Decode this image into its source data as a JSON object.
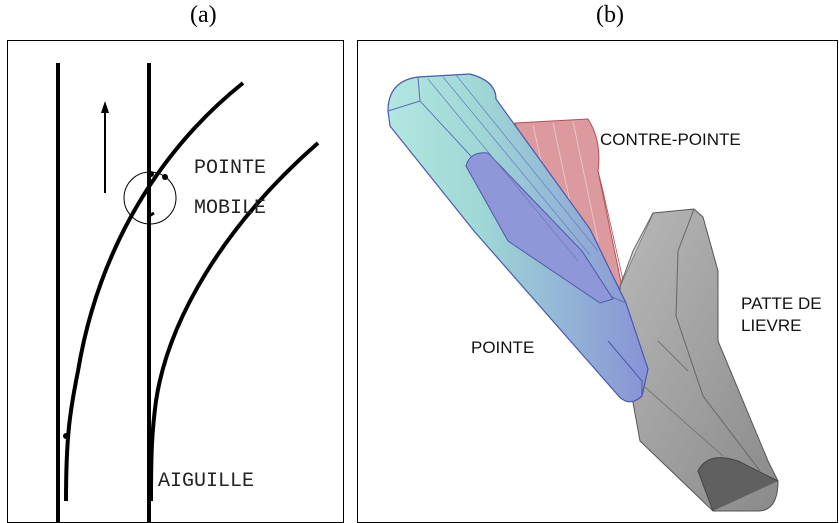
{
  "figure": {
    "panel_a": {
      "caption": "(a)",
      "labels": {
        "pointe": "POINTE",
        "mobile": "MOBILE",
        "aiguille": "AIGUILLE"
      }
    },
    "panel_b": {
      "caption": "(b)",
      "labels": {
        "contre_pointe": "CONTRE-POINTE",
        "patte_line1": "PATTE DE",
        "patte_line2": "LIEVRE",
        "pointe": "POINTE"
      },
      "colors": {
        "pointe": "#8f97d8",
        "contre_pointe": "#d88a8f",
        "patte_de_lievre": "#a6a6a6"
      }
    }
  }
}
